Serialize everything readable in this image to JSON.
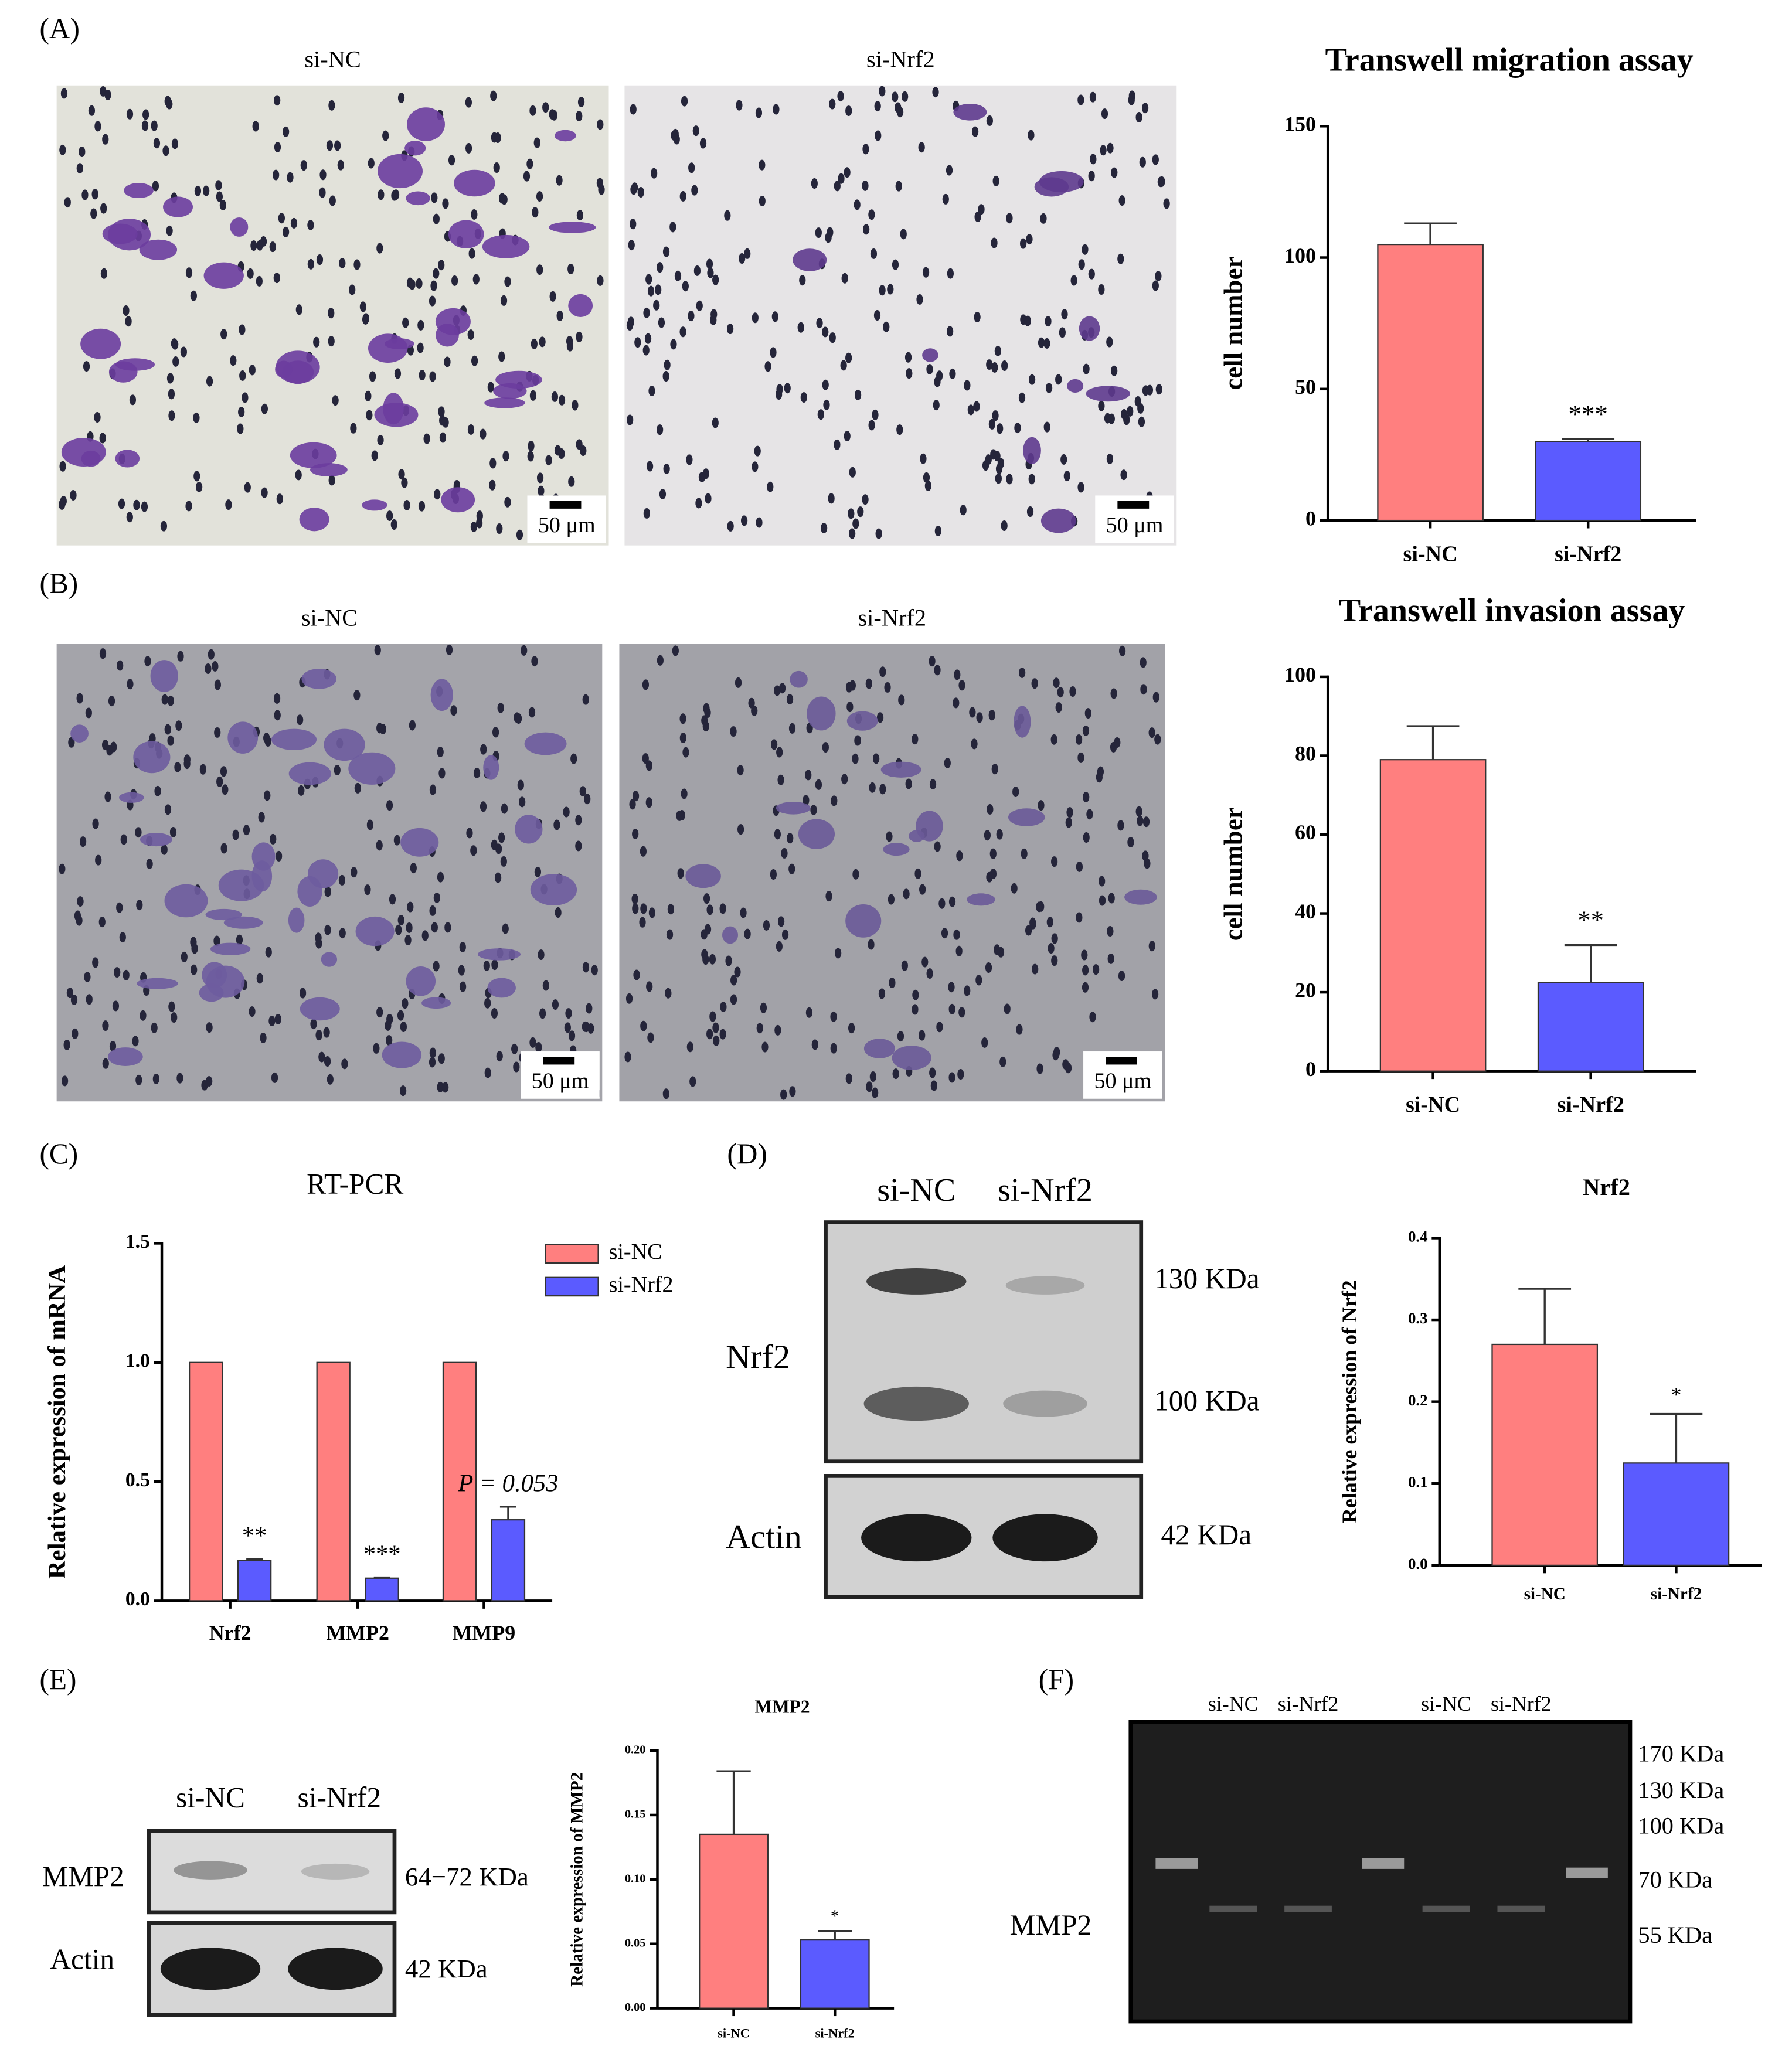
{
  "panels": {
    "labels": [
      "(A)",
      "(B)",
      "(C)",
      "(D)",
      "(E)",
      "(F)"
    ]
  },
  "micrographs": [
    {
      "title": "si-NC",
      "scale_bar": "50 μm"
    },
    {
      "title": "si-Nrf2",
      "scale_bar": "50 μm"
    },
    {
      "title": "si-NC",
      "scale_bar": "50 μm"
    },
    {
      "title": "si-Nrf2",
      "scale_bar": "50 μm"
    }
  ],
  "blots": {
    "D": {
      "lanes": [
        "si-NC",
        "si-Nrf2"
      ],
      "rows": [
        "Nrf2",
        "Actin"
      ],
      "sizes": [
        "130 KDa",
        "100 KDa",
        "42 KDa"
      ]
    },
    "E": {
      "lanes": [
        "si-NC",
        "si-Nrf2"
      ],
      "rows": [
        "MMP2",
        "Actin"
      ],
      "sizes": [
        "64−72 KDa",
        "42 KDa"
      ]
    },
    "F": {
      "lanes": [
        "si-NC",
        "si-Nrf2",
        "si-NC",
        "si-Nrf2"
      ],
      "rows": [
        "MMP2"
      ],
      "sizes": [
        "170 KDa",
        "130 KDa",
        "100 KDa",
        "70 KDa",
        "55 KDa"
      ]
    }
  },
  "chart_data": [
    {
      "type": "bar",
      "title": "Transwell migration assay",
      "y_label": "cell number",
      "categories": [
        "si-NC",
        "si-Nrf2"
      ],
      "values": [
        105,
        30
      ],
      "errors": [
        8,
        1
      ],
      "significance": [
        null,
        "***"
      ],
      "colors": [
        "#ff7f7f",
        "#5b5bff"
      ],
      "ylim": [
        0,
        150
      ],
      "yticks": [
        0,
        50,
        100,
        150
      ]
    },
    {
      "type": "bar",
      "title": "Transwell invasion assay",
      "y_label": "cell number",
      "categories": [
        "si-NC",
        "si-Nrf2"
      ],
      "values": [
        79,
        22.5
      ],
      "errors": [
        8.5,
        9.5
      ],
      "significance": [
        null,
        "**"
      ],
      "colors": [
        "#ff7f7f",
        "#5b5bff"
      ],
      "ylim": [
        0,
        100
      ],
      "yticks": [
        0,
        20,
        40,
        60,
        80,
        100
      ]
    },
    {
      "type": "grouped_bar",
      "title": "RT-PCR",
      "y_label": "Relative expression of mRNA",
      "categories": [
        "Nrf2",
        "MMP2",
        "MMP9"
      ],
      "series": [
        {
          "name": "si-NC",
          "color": "#ff7f7f",
          "values": [
            1,
            1,
            1
          ]
        },
        {
          "name": "si-Nrf2",
          "color": "#5b5bff",
          "values": [
            0.17,
            0.095,
            0.34
          ],
          "errors": [
            0.005,
            0.003,
            0.055
          ],
          "significance": [
            "**",
            "***",
            "P = 0.053"
          ]
        }
      ],
      "ylim": [
        0,
        1.5
      ],
      "yticks": [
        {
          "value": 0,
          "label": "0.0"
        },
        0.5,
        {
          "value": 1,
          "label": "1.0"
        },
        1.5
      ],
      "legend": "top-right"
    },
    {
      "type": "bar",
      "title": "Nrf2",
      "y_label": "Relative expression of Nrf2",
      "categories": [
        "si-NC",
        "si-Nrf2"
      ],
      "values": [
        0.27,
        0.125
      ],
      "errors": [
        0.068,
        0.06
      ],
      "significance": [
        null,
        "*"
      ],
      "colors": [
        "#ff7f7f",
        "#5b5bff"
      ],
      "ylim": [
        0,
        0.4
      ],
      "yticks": [
        {
          "value": 0,
          "label": "0.0"
        },
        0.1,
        0.2,
        0.3,
        0.4
      ]
    },
    {
      "type": "bar",
      "title": "MMP2",
      "y_label": "Relative expression of MMP2",
      "categories": [
        "si-NC",
        "si-Nrf2"
      ],
      "values": [
        0.135,
        0.053
      ],
      "errors": [
        0.049,
        0.007
      ],
      "significance": [
        null,
        "*"
      ],
      "colors": [
        "#ff7f7f",
        "#5b5bff"
      ],
      "ylim": [
        0,
        0.2
      ],
      "yticks": [
        {
          "value": 0,
          "label": "0.00"
        },
        0.05,
        {
          "value": 0.1,
          "label": "0.10"
        },
        0.15,
        {
          "value": 0.2,
          "label": "0.20"
        }
      ]
    }
  ]
}
